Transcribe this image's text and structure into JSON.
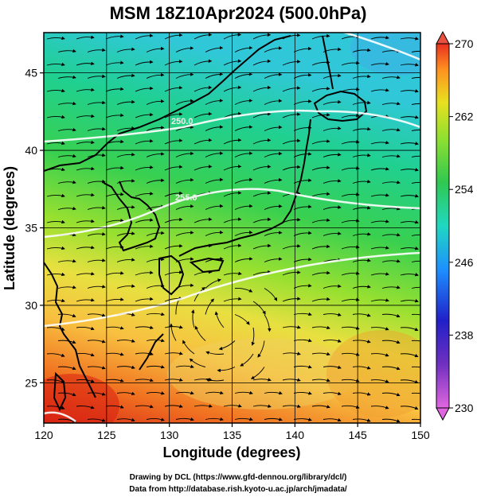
{
  "title": "MSM 18Z10Apr2024 (500.0hPa)",
  "chart_data": {
    "type": "map",
    "title": "MSM 18Z10Apr2024 (500.0hPa)",
    "xlabel": "Longitude (degrees)",
    "ylabel": "Latitude  (degrees)",
    "xlim": [
      120,
      150
    ],
    "ylim": [
      22.4,
      47.6
    ],
    "x_ticks": [
      "120",
      "125",
      "130",
      "135",
      "140",
      "145",
      "150"
    ],
    "y_ticks": [
      "25",
      "30",
      "35",
      "40",
      "45"
    ],
    "x_tick_values": [
      120,
      125,
      130,
      135,
      140,
      145,
      150
    ],
    "y_tick_values": [
      25,
      30,
      35,
      40,
      45
    ],
    "grid": true,
    "variable_shading": "temperature (K)",
    "colorbar": {
      "range": [
        230,
        270
      ],
      "labels": [
        "270",
        "262",
        "254",
        "246",
        "238",
        "230"
      ],
      "label_values": [
        270,
        262,
        254,
        246,
        238,
        230
      ],
      "colors": [
        "#e066e0",
        "#2020c8",
        "#1e90ff",
        "#20d8c0",
        "#30c850",
        "#90e030",
        "#e8e020",
        "#ff9020",
        "#e83020"
      ]
    },
    "contour_labels": [
      "250.0",
      "255.0"
    ],
    "contour_label_values": [
      250.0,
      255.0
    ],
    "contour_lines_values": [
      245,
      250,
      255,
      260,
      265
    ]
  },
  "credits": {
    "line1": "Drawing by DCL (https://www.gfd-dennou.org/library/dcl/)",
    "line2": "Data from http://database.rish.kyoto-u.ac.jp/arch/jmadata/"
  }
}
